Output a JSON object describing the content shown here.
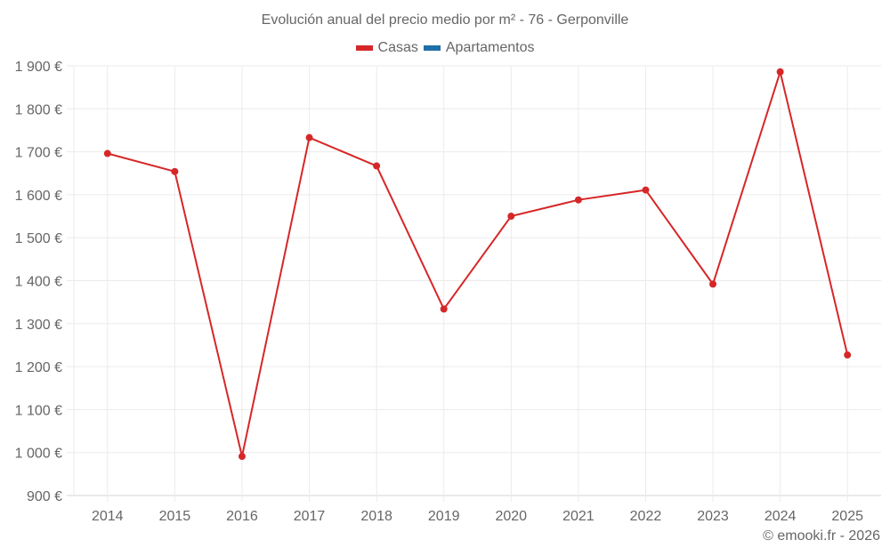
{
  "title": "Evolución anual del precio medio por m² - 76 - Gerponville",
  "legend": [
    {
      "label": "Casas",
      "color": "#d62728"
    },
    {
      "label": "Apartamentos",
      "color": "#1f6fa8"
    }
  ],
  "credit": "© emooki.fr - 2026",
  "chart_data": {
    "type": "line",
    "title": "Evolución anual del precio medio por m² - 76 - Gerponville",
    "xlabel": "",
    "ylabel": "",
    "categories": [
      "2014",
      "2015",
      "2016",
      "2017",
      "2018",
      "2019",
      "2020",
      "2021",
      "2022",
      "2023",
      "2024",
      "2025"
    ],
    "series": [
      {
        "name": "Casas",
        "color": "#d62728",
        "values": [
          1696,
          1654,
          991,
          1733,
          1667,
          1334,
          1550,
          1588,
          1611,
          1392,
          1886,
          1227
        ]
      },
      {
        "name": "Apartamentos",
        "color": "#1f6fa8",
        "values": []
      }
    ],
    "ylim": [
      900,
      1900
    ],
    "yticks": [
      900,
      1000,
      1100,
      1200,
      1300,
      1400,
      1500,
      1600,
      1700,
      1800,
      1900
    ],
    "ytick_labels": [
      "900 €",
      "1 000 €",
      "1 100 €",
      "1 200 €",
      "1 300 €",
      "1 400 €",
      "1 500 €",
      "1 600 €",
      "1 700 €",
      "1 800 €",
      "1 900 €"
    ],
    "grid": true,
    "legend_position": "top"
  }
}
